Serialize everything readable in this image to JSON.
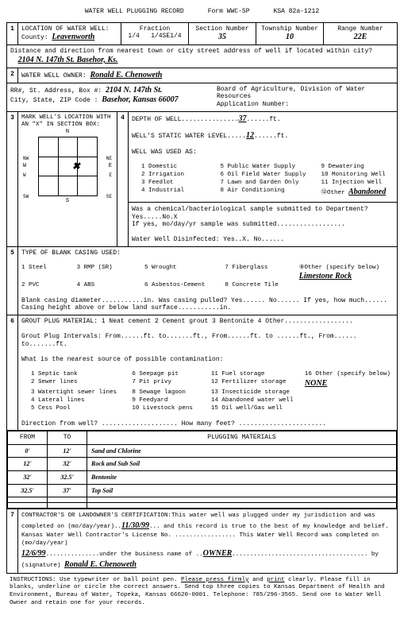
{
  "header": {
    "title": "WATER WELL PLUGGING RECORD",
    "form": "Form WWC-5P",
    "ksa": "KSA 82a-1212"
  },
  "loc": {
    "heading": "LOCATION OF WATER WELL:",
    "county_lbl": "County:",
    "county": "Leavenworth",
    "frac_lbl": "Fraction",
    "frac1": "1/4",
    "frac2": "1/4SE1/4",
    "sec_lbl": "Section  Number",
    "sec": "35",
    "twp_lbl": "Township Number",
    "twp": "10",
    "rng_lbl": "Range Number",
    "rng": "22E",
    "dist_lbl": "Distance and direction from nearest town or city street address of well if located within city?",
    "dist": "2104 N. 147th St.   Basehor, Ks."
  },
  "owner": {
    "heading": "WATER WELL OWNER:",
    "name": "Ronald E. Chenoweth",
    "addr_lbl": "RR#, St. Address, Box #:",
    "addr": "2104 N. 147th St.",
    "city_lbl": "City, State, ZIP Code  :",
    "city": "Basehor, Kansas 66007",
    "board": "Board of Agriculture, Division of Water Resources",
    "appnum": "Application Number:"
  },
  "mark": {
    "heading": "MARK WELL'S LOCATION WITH\nAN \"X\" IN SECTION BOX:",
    "x_top": "40%",
    "x_left": "58%"
  },
  "depth": {
    "depth_lbl": "DEPTH OF WELL",
    "depth": "37",
    "ft": "ft.",
    "swl_lbl": "WELL'S STATIC WATER LEVEL",
    "swl": "12",
    "used_lbl": "WELL WAS USED AS:",
    "uses": [
      "1 Domestic",
      "5 Public Water Supply",
      "9 Dewatering",
      "2 Irrigation",
      "6 Oil Field Water Supply",
      "10 Monitoring Well",
      "3 Feedlot",
      "7 Lawn and Garden Only",
      "11 Injection Well",
      "4 Industrial",
      "8 Air Conditioning",
      "⑫Other"
    ],
    "other": "Abandoned",
    "chem": "Was a chemical/bacteriological sample submitted to Department? Yes.....No.X",
    "chem2": "If yes, mo/day/yr sample was submitted..................",
    "disinf": "Water Well Disinfected:  Yes..X.  No......"
  },
  "casing": {
    "heading": "TYPE OF BLANK CASING USED:",
    "opts": [
      "1 Steel",
      "3 RMP (SR)",
      "5 Wrought",
      "7 Fiberglass",
      "⑨Other (specify below)",
      "2 PVC",
      "4 ABS",
      "6 Asbestos-Cement",
      "8 Concrete Tile"
    ],
    "other": "Limestone Rock",
    "diam": "Blank casing diameter...........in.    Was casing pulled?  Yes......  No......  If yes, how much......",
    "height": "Casing height above or below land surface...........in."
  },
  "grout": {
    "heading": "GROUT PLUG MATERIAL:  1 Neat cement    2 Cement grout    3 Bentonite    4 Other..................",
    "intervals": "Grout Plug Intervals:     From......ft.  to.......ft., From......ft.  to ......ft.,  From......  to.......ft.",
    "contam_lbl": "What is the nearest source of possible contamination:",
    "contam": [
      "1 Septic tank",
      "6 Seepage pit",
      "11 Fuel storage",
      "16 Other (specify below)",
      "2 Sewer lines",
      "7 Pit privy",
      "12 Fertilizer storage",
      "NONE",
      "3 Watertight sewer lines",
      "8 Sewage lagoon",
      "13 Insecticide storage",
      "",
      "4 Lateral lines",
      "9 Feedyard",
      "14 Abandoned water well",
      "",
      "5 Cess Pool",
      "10 Livestock pens",
      "15 Oil well/Gas well",
      ""
    ],
    "dir": "Direction from well? ....................            How many feet? ......................."
  },
  "plug": {
    "h1": "FROM",
    "h2": "TO",
    "h3": "PLUGGING MATERIALS",
    "rows": [
      {
        "f": "0'",
        "t": "12'",
        "m": "Sand and Chlorine"
      },
      {
        "f": "12'",
        "t": "32'",
        "m": "Rock and Sub Soil"
      },
      {
        "f": "32'",
        "t": "32.5'",
        "m": "Bentonite"
      },
      {
        "f": "32.5'",
        "t": "37'",
        "m": "Top Soil"
      },
      {
        "f": "",
        "t": "",
        "m": ""
      },
      {
        "f": "",
        "t": "",
        "m": ""
      }
    ]
  },
  "cert": {
    "text1": "CONTRACTOR'S OR LANDOWNER'S CERTIFICATION:This water well was plugged under my jurisdiction and was completed on (mo/day/year)..",
    "date1": "11/30/99",
    "text2": "... and this record is true to the best of my knowledge and belief.  Kansas Water Well Contractor's License No. .................  This Water Well Record was completed on (mo/day/year) ",
    "date2": "12/6/99",
    "text3": "...............under the business name of ..",
    "owner": "OWNER",
    "text4": "...................................... by (signature) ",
    "sig": "Ronald E. Chenoweth"
  },
  "instr": "INSTRUCTIONS: Use typewriter or ball point pen. Please press firmly and print clearly. Please fill in blanks, underline or circle the correct answers. Send top three copies to Kansas Department of Health and Environment, Bureau of Water, Topeka, Kansas 66620-0001. Telephone: 785/296-3565. Send one to Water Well Owner and retain one for your records."
}
